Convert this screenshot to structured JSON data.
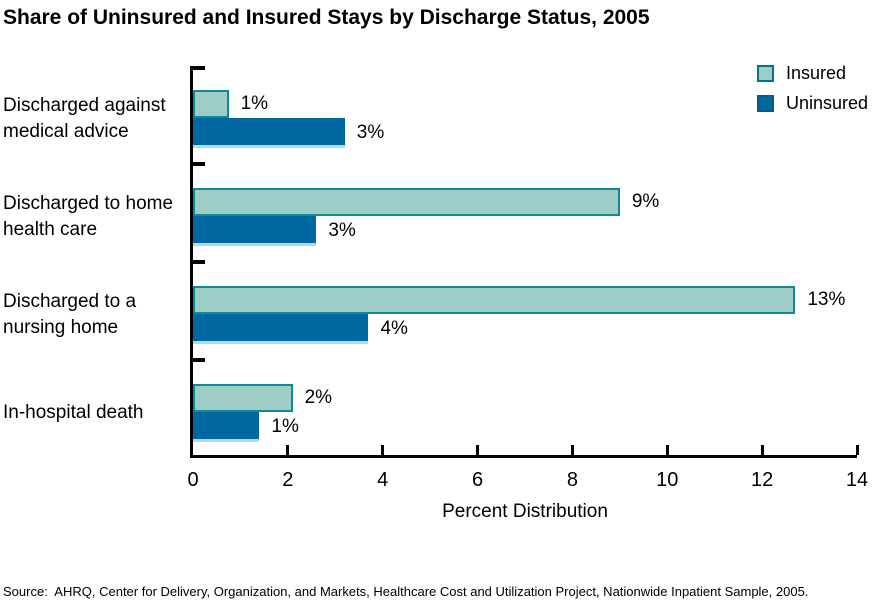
{
  "title": "Share of Uninsured and Insured Stays by Discharge Status, 2005",
  "source": "Source:  AHRQ, Center for Delivery, Organization, and Markets, Healthcare Cost and Utilization Project, Nationwide Inpatient Sample, 2005.",
  "chart_data": {
    "type": "bar",
    "orientation": "horizontal",
    "title": "Share of Uninsured and Insured Stays by Discharge Status, 2005",
    "categories": [
      "Discharged against medical advice",
      "Discharged to home health care",
      "Discharged to a nursing home",
      "In-hospital death"
    ],
    "series": [
      {
        "name": "Insured",
        "values": [
          1,
          9,
          13,
          2
        ],
        "labels": [
          "1%",
          "9%",
          "13%",
          "2%"
        ],
        "bar_values": [
          0.75,
          9.0,
          12.7,
          2.1
        ],
        "fill": "#9ECDC8",
        "border": "#0E8A96"
      },
      {
        "name": "Uninsured",
        "values": [
          3,
          3,
          4,
          1
        ],
        "labels": [
          "3%",
          "3%",
          "4%",
          "1%"
        ],
        "bar_values": [
          3.2,
          2.6,
          3.7,
          1.4
        ],
        "fill": "#0067A1",
        "border": "#ABDEDC"
      }
    ],
    "xlabel": "Percent Distribution",
    "xlim": [
      0,
      14
    ],
    "xticks": [
      0,
      2,
      4,
      6,
      8,
      10,
      12,
      14
    ],
    "grid": false,
    "legend": {
      "position": "top-right",
      "items": [
        "Insured",
        "Uninsured"
      ]
    }
  },
  "colors": {
    "insured_fill": "#9ECDC8",
    "insured_border": "#0E8A96",
    "uninsured_fill": "#0067A1",
    "uninsured_underline": "#ABDEDC",
    "axis": "#000000",
    "text": "#000000",
    "background": "#FFFFFF"
  }
}
